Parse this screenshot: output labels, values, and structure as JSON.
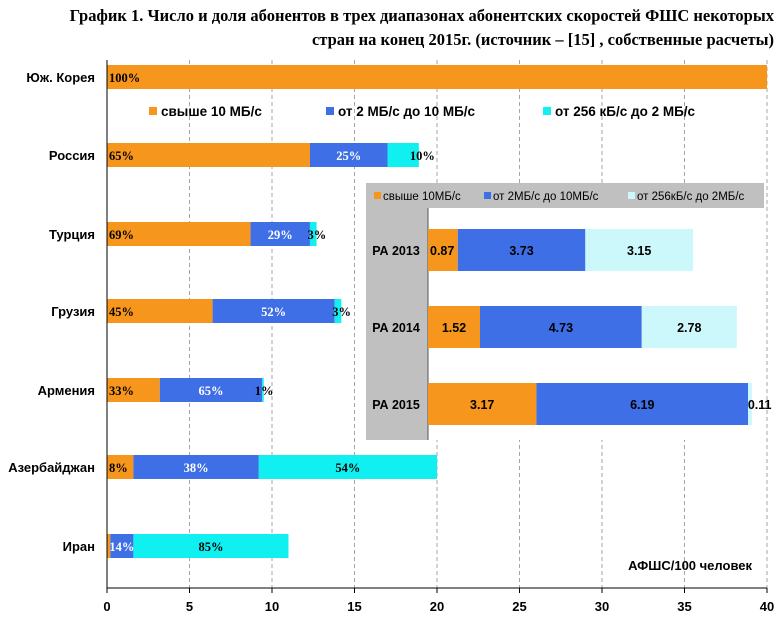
{
  "title": {
    "line1": "График 1. Число и доля абонентов в трех диапазонах абонентских скоростей ФШС некоторых",
    "line2": "стран на конец 2015г. (источник – [15] , собственные расчеты)"
  },
  "chart_data": [
    {
      "type": "bar",
      "stacked": true,
      "orientation": "horizontal",
      "categories": [
        "Юж. Корея",
        "Россия",
        "Турция",
        "Грузия",
        "Армения",
        "Азербайджан",
        "Иран"
      ],
      "series": [
        {
          "name": "свыше 10 МБ/с",
          "color": "#f7961d",
          "values": [
            40,
            12.3,
            8.7,
            6.4,
            3.2,
            1.6,
            0.2
          ],
          "labels": [
            "100%",
            "65%",
            "69%",
            "45%",
            "33%",
            "8%",
            ""
          ]
        },
        {
          "name": "от 2 МБ/с до 10 МБ/с",
          "color": "#3f6fe6",
          "values": [
            0,
            4.7,
            3.6,
            7.4,
            6.2,
            7.6,
            1.4
          ],
          "labels": [
            "",
            "25%",
            "29%",
            "52%",
            "65%",
            "38%",
            "14%"
          ]
        },
        {
          "name": "от 256 кБ/с до 2 МБ/с",
          "color": "#10f0f0",
          "values": [
            0,
            1.9,
            0.4,
            0.4,
            0.1,
            10.8,
            9.4
          ],
          "labels": [
            "",
            "10%",
            "3%",
            "3%",
            "1%",
            "54%",
            "85%"
          ]
        }
      ],
      "xlim": [
        0,
        40
      ],
      "xticks": [
        "0",
        "5",
        "10",
        "15",
        "20",
        "25",
        "30",
        "35",
        "40"
      ],
      "xlabel": "АФШС/100 человек",
      "legend": "top",
      "grid": "vertical"
    },
    {
      "type": "bar",
      "stacked": true,
      "orientation": "horizontal",
      "categories": [
        "РА 2013",
        "РА 2014",
        "РА 2015"
      ],
      "series": [
        {
          "name": "свыше 10МБ/с",
          "color": "#f7961d",
          "values": [
            0.87,
            1.52,
            3.17
          ],
          "labels": [
            "0.87",
            "1.52",
            "3.17"
          ]
        },
        {
          "name": "от 2МБ/с до 10МБ/с",
          "color": "#3f6fe6",
          "values": [
            3.73,
            4.73,
            6.19
          ],
          "labels": [
            "3.73",
            "4.73",
            "6.19"
          ]
        },
        {
          "name": "от 256кБ/с до 2МБ/с",
          "color": "#ccf8fb",
          "values": [
            3.15,
            2.78,
            0.11
          ],
          "labels": [
            "3.15",
            "2.78",
            "0.11"
          ]
        }
      ],
      "xlim": [
        0,
        10
      ],
      "legend": "top",
      "grid": false
    }
  ]
}
